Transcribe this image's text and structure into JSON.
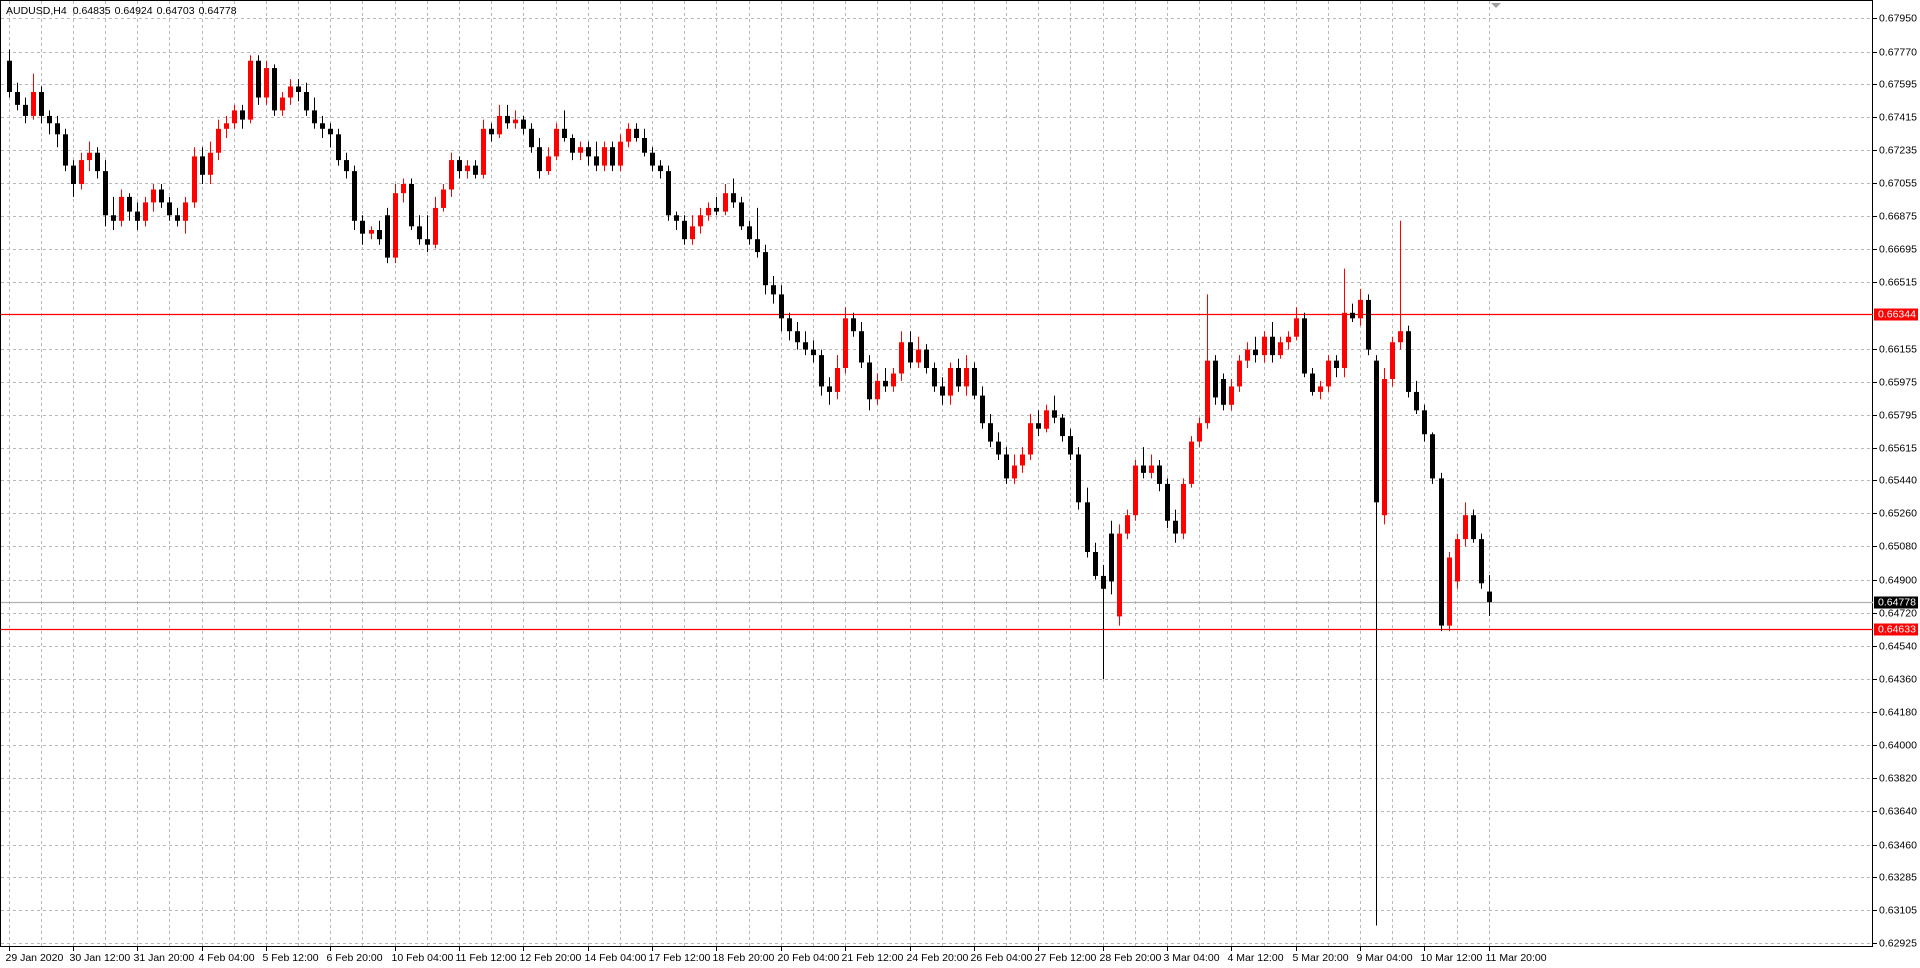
{
  "chart_data": {
    "type": "candlestick",
    "symbol": "AUDUSD,H4",
    "up_color": "#ff0000",
    "down_color": "#000000",
    "grid": true,
    "ylim": [
      0.62925,
      0.6795
    ],
    "yticks": [
      {
        "value": 0.6795,
        "label": "0.67950"
      },
      {
        "value": 0.6777,
        "label": "0.67770"
      },
      0.67595,
      0.67415,
      0.67235,
      0.67055,
      0.66875,
      0.66695,
      0.66515,
      0.66155,
      0.65975,
      0.65795,
      0.65615,
      {
        "value": 0.6544,
        "label": "0.65440"
      },
      {
        "value": 0.6526,
        "label": "0.65260"
      },
      {
        "value": 0.6508,
        "label": "0.65080"
      },
      {
        "value": 0.649,
        "label": "0.64900"
      },
      {
        "value": 0.6472,
        "label": "0.64720"
      },
      {
        "value": 0.6454,
        "label": "0.64540"
      },
      {
        "value": 0.6436,
        "label": "0.64360"
      },
      {
        "value": 0.6418,
        "label": "0.64180"
      },
      {
        "value": 0.64,
        "label": "0.64000"
      },
      {
        "value": 0.6382,
        "label": "0.63820"
      },
      {
        "value": 0.6364,
        "label": "0.63640"
      },
      {
        "value": 0.6346,
        "label": "0.63460"
      },
      0.63285,
      0.63105,
      0.62925
    ],
    "price_lines": [
      {
        "value": 0.66344,
        "color": "#ff0000",
        "label_fill": "#ff0000"
      },
      {
        "value": 0.64778,
        "color": "#b0b0b0",
        "label_fill": "#000000"
      },
      {
        "value": 0.64633,
        "color": "#ff0000",
        "label_fill": "#ff0000"
      }
    ],
    "categories": [
      "29 Jan 2020",
      null,
      null,
      null,
      null,
      null,
      null,
      null,
      "30 Jan 12:00",
      null,
      null,
      null,
      null,
      null,
      null,
      null,
      "31 Jan 20:00",
      null,
      null,
      null,
      null,
      null,
      null,
      null,
      "4 Feb 04:00",
      null,
      null,
      null,
      null,
      null,
      null,
      null,
      "5 Feb 12:00",
      null,
      null,
      null,
      null,
      null,
      null,
      null,
      "6 Feb 20:00",
      null,
      null,
      null,
      null,
      null,
      null,
      null,
      "10 Feb 04:00",
      null,
      null,
      null,
      null,
      null,
      null,
      null,
      "11 Feb 12:00",
      null,
      null,
      null,
      null,
      null,
      null,
      null,
      "12 Feb 20:00",
      null,
      null,
      null,
      null,
      null,
      null,
      null,
      "14 Feb 04:00",
      null,
      null,
      null,
      null,
      null,
      null,
      null,
      "17 Feb 12:00",
      null,
      null,
      null,
      null,
      null,
      null,
      null,
      "18 Feb 20:00",
      null,
      null,
      null,
      null,
      null,
      null,
      null,
      "20 Feb 04:00",
      null,
      null,
      null,
      null,
      null,
      null,
      null,
      "21 Feb 12:00",
      null,
      null,
      null,
      null,
      null,
      null,
      null,
      "24 Feb 20:00",
      null,
      null,
      null,
      null,
      null,
      null,
      null,
      "26 Feb 04:00",
      null,
      null,
      null,
      null,
      null,
      null,
      null,
      "27 Feb 12:00",
      null,
      null,
      null,
      null,
      null,
      null,
      null,
      "28 Feb 20:00",
      null,
      null,
      null,
      null,
      null,
      null,
      null,
      "3 Mar 04:00",
      null,
      null,
      null,
      null,
      null,
      null,
      null,
      "4 Mar 12:00",
      null,
      null,
      null,
      null,
      null,
      null,
      null,
      "5 Mar 20:00",
      null,
      null,
      null,
      null,
      null,
      null,
      null,
      "9 Mar 04:00",
      null,
      null,
      null,
      null,
      null,
      null,
      null,
      "10 Mar 12:00",
      null,
      null,
      null,
      null,
      null,
      null,
      null,
      "11 Mar 20:00"
    ],
    "candles": [
      [
        0.6772,
        0.6778,
        0.6752,
        0.6755
      ],
      [
        0.6755,
        0.676,
        0.6745,
        0.6748
      ],
      [
        0.6748,
        0.6752,
        0.6738,
        0.6742
      ],
      [
        0.6742,
        0.6765,
        0.674,
        0.6755
      ],
      [
        0.6755,
        0.6758,
        0.6738,
        0.6742
      ],
      [
        0.6742,
        0.6745,
        0.6732,
        0.6738
      ],
      [
        0.6738,
        0.6742,
        0.6725,
        0.6732
      ],
      [
        0.6732,
        0.6735,
        0.6712,
        0.6715
      ],
      [
        0.6715,
        0.6718,
        0.6698,
        0.6705
      ],
      [
        0.6705,
        0.6722,
        0.6702,
        0.6718
      ],
      [
        0.6718,
        0.6728,
        0.6712,
        0.6722
      ],
      [
        0.6722,
        0.6725,
        0.6708,
        0.6712
      ],
      [
        0.6712,
        0.6718,
        0.6682,
        0.6688
      ],
      [
        0.6688,
        0.6698,
        0.668,
        0.6685
      ],
      [
        0.6685,
        0.6702,
        0.6682,
        0.6698
      ],
      [
        0.6698,
        0.67,
        0.6685,
        0.669
      ],
      [
        0.669,
        0.6695,
        0.668,
        0.6685
      ],
      [
        0.6685,
        0.6698,
        0.6682,
        0.6695
      ],
      [
        0.6695,
        0.6705,
        0.669,
        0.6702
      ],
      [
        0.6702,
        0.6705,
        0.6692,
        0.6695
      ],
      [
        0.6695,
        0.6698,
        0.6685,
        0.6688
      ],
      [
        0.6688,
        0.6692,
        0.6682,
        0.6685
      ],
      [
        0.6685,
        0.6698,
        0.6678,
        0.6695
      ],
      [
        0.6695,
        0.6725,
        0.6692,
        0.672
      ],
      [
        0.672,
        0.6725,
        0.6705,
        0.671
      ],
      [
        0.671,
        0.6728,
        0.6705,
        0.6722
      ],
      [
        0.6722,
        0.674,
        0.6718,
        0.6735
      ],
      [
        0.6735,
        0.6742,
        0.673,
        0.6738
      ],
      [
        0.6738,
        0.6748,
        0.6735,
        0.6745
      ],
      [
        0.6745,
        0.6748,
        0.6735,
        0.674
      ],
      [
        0.674,
        0.6775,
        0.6738,
        0.6772
      ],
      [
        0.6772,
        0.6775,
        0.6748,
        0.6752
      ],
      [
        0.6752,
        0.6772,
        0.6748,
        0.6768
      ],
      [
        0.6768,
        0.677,
        0.6742,
        0.6745
      ],
      [
        0.6745,
        0.6755,
        0.6742,
        0.6752
      ],
      [
        0.6752,
        0.6762,
        0.6748,
        0.6758
      ],
      [
        0.6758,
        0.6762,
        0.675,
        0.6755
      ],
      [
        0.6755,
        0.676,
        0.6742,
        0.6745
      ],
      [
        0.6745,
        0.6752,
        0.6735,
        0.6738
      ],
      [
        0.6738,
        0.6742,
        0.673,
        0.6735
      ],
      [
        0.6735,
        0.6738,
        0.6725,
        0.6732
      ],
      [
        0.6732,
        0.6735,
        0.6715,
        0.6718
      ],
      [
        0.6718,
        0.6722,
        0.6708,
        0.6712
      ],
      [
        0.6712,
        0.6715,
        0.668,
        0.6685
      ],
      [
        0.6685,
        0.6688,
        0.6672,
        0.6678
      ],
      [
        0.6678,
        0.6682,
        0.6675,
        0.668
      ],
      [
        0.668,
        0.6685,
        0.6672,
        0.6675
      ],
      [
        0.6688,
        0.6692,
        0.6662,
        0.6665
      ],
      [
        0.6665,
        0.6705,
        0.6662,
        0.67
      ],
      [
        0.67,
        0.6708,
        0.6695,
        0.6705
      ],
      [
        0.6705,
        0.6708,
        0.668,
        0.6682
      ],
      [
        0.6682,
        0.6688,
        0.6672,
        0.6675
      ],
      [
        0.6675,
        0.6688,
        0.6668,
        0.6672
      ],
      [
        0.6672,
        0.6698,
        0.667,
        0.6692
      ],
      [
        0.6692,
        0.6705,
        0.669,
        0.6702
      ],
      [
        0.6702,
        0.6722,
        0.6698,
        0.6718
      ],
      [
        0.6718,
        0.672,
        0.6708,
        0.6712
      ],
      [
        0.6712,
        0.6718,
        0.6708,
        0.6715
      ],
      [
        0.6715,
        0.6718,
        0.6708,
        0.671
      ],
      [
        0.671,
        0.674,
        0.6708,
        0.6735
      ],
      [
        0.6735,
        0.6738,
        0.6728,
        0.6732
      ],
      [
        0.6732,
        0.6748,
        0.673,
        0.6742
      ],
      [
        0.6742,
        0.6748,
        0.6735,
        0.6738
      ],
      [
        0.6738,
        0.6745,
        0.6735,
        0.674
      ],
      [
        0.674,
        0.6742,
        0.6732,
        0.6735
      ],
      [
        0.6735,
        0.6738,
        0.6722,
        0.6725
      ],
      [
        0.6725,
        0.673,
        0.6708,
        0.6712
      ],
      [
        0.6712,
        0.6725,
        0.671,
        0.672
      ],
      [
        0.672,
        0.6738,
        0.6718,
        0.6735
      ],
      [
        0.6735,
        0.6745,
        0.6728,
        0.673
      ],
      [
        0.673,
        0.6732,
        0.6718,
        0.6722
      ],
      [
        0.6722,
        0.6728,
        0.6718,
        0.6725
      ],
      [
        0.6725,
        0.6728,
        0.6715,
        0.672
      ],
      [
        0.672,
        0.6728,
        0.6712,
        0.6715
      ],
      [
        0.6715,
        0.6728,
        0.6712,
        0.6725
      ],
      [
        0.6725,
        0.6728,
        0.6712,
        0.6715
      ],
      [
        0.6715,
        0.6732,
        0.6712,
        0.6728
      ],
      [
        0.6728,
        0.6738,
        0.6725,
        0.6735
      ],
      [
        0.6735,
        0.6738,
        0.6728,
        0.673
      ],
      [
        0.673,
        0.6735,
        0.672,
        0.6722
      ],
      [
        0.6722,
        0.6725,
        0.6712,
        0.6715
      ],
      [
        0.6715,
        0.6718,
        0.6708,
        0.6712
      ],
      [
        0.6712,
        0.6715,
        0.6685,
        0.6688
      ],
      [
        0.6688,
        0.669,
        0.668,
        0.6685
      ],
      [
        0.6685,
        0.6688,
        0.6672,
        0.6675
      ],
      [
        0.6675,
        0.6688,
        0.6672,
        0.6682
      ],
      [
        0.6682,
        0.6692,
        0.6678,
        0.6688
      ],
      [
        0.6688,
        0.6695,
        0.6685,
        0.6692
      ],
      [
        0.6692,
        0.6698,
        0.6688,
        0.669
      ],
      [
        0.669,
        0.6705,
        0.6688,
        0.67
      ],
      [
        0.67,
        0.6708,
        0.6692,
        0.6695
      ],
      [
        0.6695,
        0.6698,
        0.668,
        0.6682
      ],
      [
        0.6682,
        0.6685,
        0.6672,
        0.6675
      ],
      [
        0.6675,
        0.6692,
        0.6665,
        0.6668
      ],
      [
        0.6668,
        0.6672,
        0.6645,
        0.665
      ],
      [
        0.665,
        0.6655,
        0.664,
        0.6645
      ],
      [
        0.6645,
        0.665,
        0.6625,
        0.6632
      ],
      [
        0.6632,
        0.6635,
        0.662,
        0.6625
      ],
      [
        0.6625,
        0.663,
        0.6615,
        0.6619
      ],
      [
        0.6619,
        0.6625,
        0.6612,
        0.6615
      ],
      [
        0.6615,
        0.662,
        0.6608,
        0.6612
      ],
      [
        0.6612,
        0.6615,
        0.659,
        0.6595
      ],
      [
        0.6595,
        0.66,
        0.6585,
        0.6592
      ],
      [
        0.6592,
        0.6612,
        0.6588,
        0.6605
      ],
      [
        0.6605,
        0.6638,
        0.6602,
        0.6632
      ],
      [
        0.6632,
        0.6635,
        0.6622,
        0.6625
      ],
      [
        0.6625,
        0.663,
        0.6605,
        0.6608
      ],
      [
        0.6608,
        0.6612,
        0.6582,
        0.6588
      ],
      [
        0.6588,
        0.6602,
        0.6585,
        0.6598
      ],
      [
        0.6598,
        0.6605,
        0.6592,
        0.6595
      ],
      [
        0.6595,
        0.6605,
        0.6592,
        0.6602
      ],
      [
        0.6602,
        0.6625,
        0.6598,
        0.6619
      ],
      [
        0.6619,
        0.6625,
        0.6605,
        0.6608
      ],
      [
        0.6608,
        0.6622,
        0.6605,
        0.6615
      ],
      [
        0.6615,
        0.6618,
        0.6602,
        0.6605
      ],
      [
        0.6605,
        0.6608,
        0.6592,
        0.6595
      ],
      [
        0.6595,
        0.66,
        0.6585,
        0.659
      ],
      [
        0.659,
        0.6608,
        0.6585,
        0.6605
      ],
      [
        0.6605,
        0.661,
        0.6592,
        0.6595
      ],
      [
        0.6595,
        0.6612,
        0.659,
        0.6605
      ],
      [
        0.6605,
        0.6608,
        0.6588,
        0.659
      ],
      [
        0.659,
        0.6595,
        0.6572,
        0.6575
      ],
      [
        0.6575,
        0.658,
        0.6562,
        0.6565
      ],
      [
        0.6565,
        0.657,
        0.6555,
        0.6558
      ],
      [
        0.6558,
        0.6562,
        0.6542,
        0.6545
      ],
      [
        0.6545,
        0.6558,
        0.6542,
        0.6552
      ],
      [
        0.6552,
        0.6562,
        0.6548,
        0.6558
      ],
      [
        0.6558,
        0.658,
        0.6555,
        0.6575
      ],
      [
        0.6575,
        0.6582,
        0.6568,
        0.6572
      ],
      [
        0.6572,
        0.6585,
        0.657,
        0.6582
      ],
      [
        0.6582,
        0.659,
        0.6575,
        0.6578
      ],
      [
        0.6578,
        0.658,
        0.6565,
        0.6568
      ],
      [
        0.6568,
        0.6572,
        0.6555,
        0.6558
      ],
      [
        0.6558,
        0.6562,
        0.6528,
        0.6532
      ],
      [
        0.6532,
        0.654,
        0.6502,
        0.6505
      ],
      [
        0.6505,
        0.651,
        0.649,
        0.6492
      ],
      [
        0.6492,
        0.6498,
        0.6436,
        0.6485
      ],
      [
        0.6515,
        0.6522,
        0.6482,
        0.6489
      ],
      [
        0.647,
        0.652,
        0.6465,
        0.6515
      ],
      [
        0.6515,
        0.6528,
        0.6512,
        0.6525
      ],
      [
        0.6525,
        0.6555,
        0.6522,
        0.6552
      ],
      [
        0.6552,
        0.6562,
        0.6545,
        0.6548
      ],
      [
        0.6548,
        0.6558,
        0.6545,
        0.6552
      ],
      [
        0.6552,
        0.6555,
        0.6538,
        0.6542
      ],
      [
        0.6542,
        0.6545,
        0.6518,
        0.6522
      ],
      [
        0.6522,
        0.6528,
        0.651,
        0.6515
      ],
      [
        0.6515,
        0.6545,
        0.6512,
        0.6542
      ],
      [
        0.6542,
        0.6568,
        0.654,
        0.6565
      ],
      [
        0.6565,
        0.6578,
        0.6562,
        0.6575
      ],
      [
        0.6575,
        0.6645,
        0.6572,
        0.6609
      ],
      [
        0.6609,
        0.6612,
        0.6585,
        0.6589
      ],
      [
        0.6599,
        0.6602,
        0.6582,
        0.6585
      ],
      [
        0.6585,
        0.6599,
        0.6582,
        0.6595
      ],
      [
        0.6595,
        0.6612,
        0.6592,
        0.6609
      ],
      [
        0.6609,
        0.6619,
        0.6605,
        0.6615
      ],
      [
        0.6615,
        0.6622,
        0.6608,
        0.6612
      ],
      [
        0.6612,
        0.6625,
        0.6608,
        0.6622
      ],
      [
        0.6622,
        0.663,
        0.6608,
        0.6612
      ],
      [
        0.6612,
        0.6622,
        0.661,
        0.6619
      ],
      [
        0.6619,
        0.6625,
        0.6615,
        0.6622
      ],
      [
        0.6622,
        0.6638,
        0.662,
        0.6632
      ],
      [
        0.6632,
        0.6635,
        0.66,
        0.6602
      ],
      [
        0.6602,
        0.6605,
        0.659,
        0.6592
      ],
      [
        0.6592,
        0.6598,
        0.6588,
        0.6595
      ],
      [
        0.6595,
        0.6612,
        0.6592,
        0.6609
      ],
      [
        0.6609,
        0.6612,
        0.66,
        0.6605
      ],
      [
        0.6605,
        0.6659,
        0.66,
        0.6635
      ],
      [
        0.6635,
        0.664,
        0.663,
        0.6632
      ],
      [
        0.6632,
        0.6648,
        0.6628,
        0.6642
      ],
      [
        0.6642,
        0.6645,
        0.6612,
        0.6615
      ],
      [
        0.6609,
        0.6612,
        0.6302,
        0.6532
      ],
      [
        0.6525,
        0.6605,
        0.652,
        0.6599
      ],
      [
        0.6599,
        0.6622,
        0.6595,
        0.6619
      ],
      [
        0.6619,
        0.6685,
        0.6615,
        0.6625
      ],
      [
        0.6625,
        0.6628,
        0.6589,
        0.6592
      ],
      [
        0.6592,
        0.6598,
        0.658,
        0.6582
      ],
      [
        0.6582,
        0.6585,
        0.6565,
        0.6569
      ],
      [
        0.6569,
        0.657,
        0.6542,
        0.6545
      ],
      [
        0.6545,
        0.6548,
        0.6462,
        0.6465
      ],
      [
        0.6465,
        0.6505,
        0.6462,
        0.6502
      ],
      [
        0.6489,
        0.6515,
        0.6485,
        0.6512
      ],
      [
        0.6512,
        0.6532,
        0.6508,
        0.6525
      ],
      [
        0.6525,
        0.6528,
        0.651,
        0.6512
      ],
      [
        0.6512,
        0.6515,
        0.6485,
        0.6488
      ],
      [
        0.64835,
        0.64924,
        0.64703,
        0.64778
      ]
    ]
  }
}
